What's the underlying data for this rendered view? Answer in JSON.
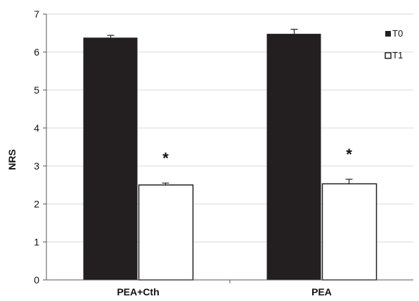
{
  "chart_data": {
    "type": "bar",
    "title": "",
    "xlabel": "",
    "ylabel": "NRS",
    "ylim": [
      0,
      7
    ],
    "yticks": [
      0,
      1,
      2,
      3,
      4,
      5,
      6,
      7
    ],
    "categories": [
      "PEA+Cth",
      "PEA"
    ],
    "series": [
      {
        "name": "T0",
        "values": [
          6.38,
          6.48
        ],
        "errors": [
          0.06,
          0.12
        ],
        "color": "#231f20",
        "stroke": "#231f20"
      },
      {
        "name": "T1",
        "values": [
          2.5,
          2.53
        ],
        "errors": [
          0.05,
          0.12
        ],
        "color": "#ffffff",
        "stroke": "#231f20"
      }
    ],
    "annotations": [
      {
        "category": 0,
        "series": 1,
        "text": "*"
      },
      {
        "category": 1,
        "series": 1,
        "text": "*"
      }
    ],
    "grid": true,
    "legend": "top-right"
  }
}
